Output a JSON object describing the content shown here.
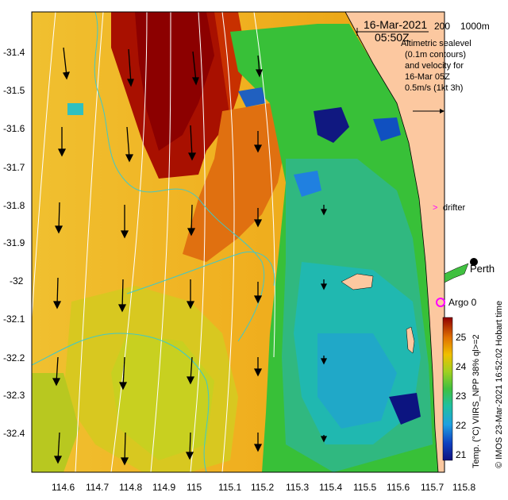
{
  "map": {
    "date_label": "16-Mar-2021",
    "time_label": "05:50Z",
    "depth_labels": [
      "200",
      "1000m"
    ],
    "legend_lines": [
      "Altimetric sealevel",
      "(0.1m contours)",
      "and velocity for",
      "16-Mar 05Z",
      "0.5m/s (1kt 3h)"
    ],
    "drifter_label": "drifter",
    "argo_label": "Argo 0",
    "city_label": "Perth",
    "credit_left": "© IMOS 23-Mar-2021 16:52:02 Hobart time",
    "credit_right": "Temp. (°C) VIIRS_NPP 38% ql>=2",
    "colorbar_ticks": [
      "25",
      "24",
      "23",
      "22",
      "21"
    ],
    "colors": {
      "land": "#fcc8a0",
      "drifter": "#ff00ff",
      "argo": "#ff00ff",
      "contour": "#ffffff",
      "isobath": "#40c8c8"
    }
  },
  "axes": {
    "lon_ticks": [
      "114.6",
      "114.7",
      "114.8",
      "114.9",
      "115",
      "115.1",
      "115.2",
      "115.3",
      "115.4",
      "115.5",
      "115.6",
      "115.7",
      "115.8"
    ],
    "lat_ticks": [
      "-31.4",
      "-31.5",
      "-31.6",
      "-31.7",
      "-31.8",
      "-31.9",
      "-32",
      "-32.1",
      "-32.2",
      "-32.3",
      "-32.4"
    ]
  }
}
